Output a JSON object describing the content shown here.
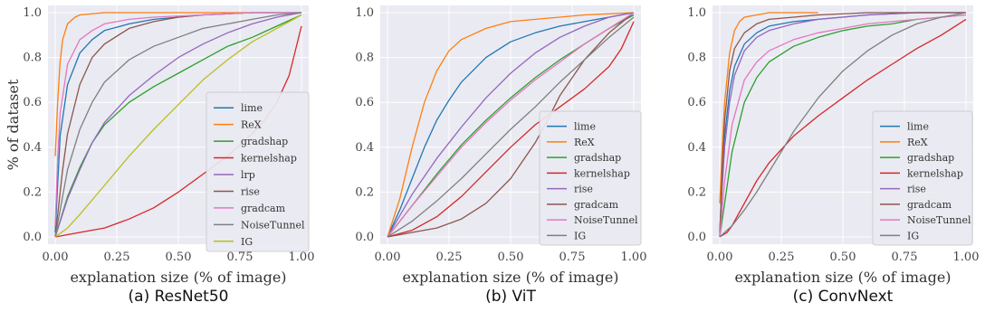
{
  "chart_data": [
    {
      "type": "line",
      "caption": "(a) ResNet50",
      "xlabel": "explanation size (% of image)",
      "ylabel": "% of dataset",
      "xlim": [
        0,
        1
      ],
      "ylim": [
        0,
        1
      ],
      "xticks": [
        "0.00",
        "0.25",
        "0.50",
        "0.75",
        "1.00"
      ],
      "yticks": [
        "0.0",
        "0.2",
        "0.4",
        "0.6",
        "0.8",
        "1.0"
      ],
      "grid": true,
      "legend_position": "lower-right",
      "series": [
        {
          "name": "lime",
          "color": "#1f77b4",
          "x": [
            0,
            0.02,
            0.05,
            0.1,
            0.15,
            0.2,
            0.3,
            0.4,
            0.5,
            0.6,
            0.8,
            1.0
          ],
          "y": [
            0.02,
            0.45,
            0.68,
            0.82,
            0.88,
            0.92,
            0.95,
            0.97,
            0.98,
            0.99,
            1.0,
            1.0
          ]
        },
        {
          "name": "ReX",
          "color": "#ff7f0e",
          "x": [
            0,
            0.01,
            0.02,
            0.03,
            0.05,
            0.08,
            0.1,
            0.15,
            0.2,
            0.3,
            0.5,
            0.8
          ],
          "y": [
            0.36,
            0.6,
            0.78,
            0.88,
            0.95,
            0.98,
            0.99,
            0.995,
            1.0,
            1.0,
            1.0,
            1.0
          ]
        },
        {
          "name": "gradshap",
          "color": "#2ca02c",
          "x": [
            0,
            0.05,
            0.1,
            0.15,
            0.2,
            0.3,
            0.4,
            0.5,
            0.6,
            0.7,
            0.8,
            0.9,
            1.0
          ],
          "y": [
            0.0,
            0.18,
            0.31,
            0.42,
            0.5,
            0.6,
            0.67,
            0.73,
            0.79,
            0.85,
            0.89,
            0.94,
            0.99
          ]
        },
        {
          "name": "kernelshap",
          "color": "#d62728",
          "x": [
            0,
            0.1,
            0.2,
            0.3,
            0.4,
            0.5,
            0.6,
            0.7,
            0.8,
            0.85,
            0.9,
            0.95,
            1.0
          ],
          "y": [
            0.0,
            0.02,
            0.04,
            0.08,
            0.13,
            0.2,
            0.28,
            0.36,
            0.46,
            0.52,
            0.6,
            0.72,
            0.94
          ]
        },
        {
          "name": "lrp",
          "color": "#9467bd",
          "x": [
            0,
            0.05,
            0.1,
            0.15,
            0.2,
            0.3,
            0.4,
            0.5,
            0.6,
            0.7,
            0.8,
            0.9,
            1.0
          ],
          "y": [
            0.0,
            0.17,
            0.3,
            0.42,
            0.51,
            0.63,
            0.72,
            0.8,
            0.86,
            0.91,
            0.95,
            0.98,
            1.0
          ]
        },
        {
          "name": "rise",
          "color": "#8c564b",
          "x": [
            0,
            0.03,
            0.05,
            0.1,
            0.15,
            0.2,
            0.3,
            0.4,
            0.5,
            0.6,
            0.8,
            1.0
          ],
          "y": [
            0.0,
            0.3,
            0.46,
            0.68,
            0.8,
            0.86,
            0.93,
            0.96,
            0.98,
            0.99,
            1.0,
            1.0
          ]
        },
        {
          "name": "gradcam",
          "color": "#e377c2",
          "x": [
            0,
            0.01,
            0.02,
            0.05,
            0.1,
            0.15,
            0.2,
            0.3,
            0.4,
            0.6,
            0.8,
            1.0
          ],
          "y": [
            0.05,
            0.35,
            0.55,
            0.77,
            0.88,
            0.92,
            0.95,
            0.97,
            0.98,
            0.99,
            1.0,
            1.0
          ]
        },
        {
          "name": "NoiseTunnel",
          "color": "#7f7f7f",
          "x": [
            0,
            0.05,
            0.1,
            0.15,
            0.2,
            0.3,
            0.4,
            0.5,
            0.6,
            0.7,
            0.8,
            0.9,
            1.0
          ],
          "y": [
            0.0,
            0.3,
            0.48,
            0.6,
            0.69,
            0.79,
            0.85,
            0.89,
            0.93,
            0.95,
            0.97,
            0.99,
            1.0
          ]
        },
        {
          "name": "IG",
          "color": "#bcbd22",
          "x": [
            0,
            0.05,
            0.1,
            0.2,
            0.3,
            0.4,
            0.5,
            0.6,
            0.7,
            0.8,
            0.9,
            1.0
          ],
          "y": [
            0.0,
            0.04,
            0.1,
            0.23,
            0.36,
            0.48,
            0.59,
            0.7,
            0.79,
            0.87,
            0.93,
            0.99
          ]
        }
      ]
    },
    {
      "type": "line",
      "caption": "(b) ViT",
      "xlabel": "explanation size (% of image)",
      "ylabel": "",
      "xlim": [
        0,
        1
      ],
      "ylim": [
        0,
        1
      ],
      "xticks": [
        "0.00",
        "0.25",
        "0.50",
        "0.75",
        "1.00"
      ],
      "yticks": [
        "0.0",
        "0.2",
        "0.4",
        "0.6",
        "0.8",
        "1.0"
      ],
      "grid": true,
      "legend_position": "lower-right",
      "series": [
        {
          "name": "lime",
          "color": "#1f77b4",
          "x": [
            0,
            0.05,
            0.1,
            0.15,
            0.2,
            0.25,
            0.3,
            0.4,
            0.5,
            0.6,
            0.7,
            0.8,
            0.9,
            1.0
          ],
          "y": [
            0.0,
            0.12,
            0.26,
            0.4,
            0.52,
            0.61,
            0.69,
            0.8,
            0.87,
            0.91,
            0.94,
            0.96,
            0.98,
            1.0
          ]
        },
        {
          "name": "ReX",
          "color": "#ff7f0e",
          "x": [
            0,
            0.05,
            0.1,
            0.15,
            0.2,
            0.25,
            0.3,
            0.4,
            0.5,
            0.6,
            0.7,
            0.8,
            0.9,
            1.0
          ],
          "y": [
            0.0,
            0.17,
            0.4,
            0.6,
            0.74,
            0.83,
            0.88,
            0.93,
            0.96,
            0.97,
            0.98,
            0.99,
            0.995,
            1.0
          ]
        },
        {
          "name": "gradshap",
          "color": "#2ca02c",
          "x": [
            0,
            0.1,
            0.2,
            0.3,
            0.4,
            0.5,
            0.6,
            0.7,
            0.8,
            0.9,
            1.0
          ],
          "y": [
            0.0,
            0.14,
            0.28,
            0.41,
            0.52,
            0.62,
            0.71,
            0.79,
            0.86,
            0.93,
            0.99
          ]
        },
        {
          "name": "kernelshap",
          "color": "#d62728",
          "x": [
            0,
            0.1,
            0.2,
            0.3,
            0.4,
            0.5,
            0.6,
            0.7,
            0.8,
            0.9,
            0.95,
            1.0
          ],
          "y": [
            0.0,
            0.03,
            0.09,
            0.18,
            0.29,
            0.4,
            0.5,
            0.58,
            0.66,
            0.76,
            0.84,
            0.96
          ]
        },
        {
          "name": "rise",
          "color": "#9467bd",
          "x": [
            0,
            0.1,
            0.2,
            0.3,
            0.4,
            0.5,
            0.6,
            0.7,
            0.8,
            0.9,
            1.0
          ],
          "y": [
            0.0,
            0.19,
            0.35,
            0.49,
            0.62,
            0.73,
            0.82,
            0.89,
            0.94,
            0.98,
            1.0
          ]
        },
        {
          "name": "gradcam",
          "color": "#8c564b",
          "x": [
            0,
            0.1,
            0.2,
            0.3,
            0.4,
            0.5,
            0.6,
            0.65,
            0.7,
            0.8,
            0.9,
            1.0
          ],
          "y": [
            0.0,
            0.02,
            0.04,
            0.08,
            0.15,
            0.26,
            0.42,
            0.52,
            0.63,
            0.79,
            0.91,
            1.0
          ]
        },
        {
          "name": "NoiseTunnel",
          "color": "#e377c2",
          "x": [
            0,
            0.1,
            0.2,
            0.3,
            0.4,
            0.5,
            0.6,
            0.7,
            0.8,
            0.9,
            1.0
          ],
          "y": [
            0.0,
            0.14,
            0.27,
            0.4,
            0.51,
            0.61,
            0.7,
            0.78,
            0.86,
            0.93,
            1.0
          ]
        },
        {
          "name": "IG",
          "color": "#7f7f7f",
          "x": [
            0,
            0.1,
            0.2,
            0.3,
            0.4,
            0.5,
            0.6,
            0.7,
            0.8,
            0.9,
            1.0
          ],
          "y": [
            0.0,
            0.07,
            0.16,
            0.26,
            0.37,
            0.48,
            0.58,
            0.69,
            0.79,
            0.89,
            0.98
          ]
        }
      ]
    },
    {
      "type": "line",
      "caption": "(c) ConvNext",
      "xlabel": "explanation size (% of image)",
      "ylabel": "",
      "xlim": [
        0,
        1
      ],
      "ylim": [
        0,
        1
      ],
      "xticks": [
        "0.00",
        "0.25",
        "0.50",
        "0.75",
        "1.00"
      ],
      "yticks": [
        "0.0",
        "0.2",
        "0.4",
        "0.6",
        "0.8",
        "1.0"
      ],
      "grid": true,
      "legend_position": "lower-right",
      "series": [
        {
          "name": "lime",
          "color": "#1f77b4",
          "x": [
            0,
            0.01,
            0.02,
            0.04,
            0.06,
            0.1,
            0.15,
            0.2,
            0.3,
            0.4,
            0.6,
            0.8,
            1.0
          ],
          "y": [
            0.02,
            0.28,
            0.45,
            0.65,
            0.76,
            0.86,
            0.91,
            0.94,
            0.96,
            0.97,
            0.99,
            1.0,
            1.0
          ]
        },
        {
          "name": "ReX",
          "color": "#ff7f0e",
          "x": [
            0,
            0.01,
            0.02,
            0.04,
            0.06,
            0.08,
            0.1,
            0.15,
            0.2,
            0.3,
            0.4
          ],
          "y": [
            0.15,
            0.4,
            0.6,
            0.82,
            0.92,
            0.96,
            0.98,
            0.99,
            1.0,
            1.0,
            1.0
          ]
        },
        {
          "name": "gradshap",
          "color": "#2ca02c",
          "x": [
            0,
            0.02,
            0.05,
            0.1,
            0.15,
            0.2,
            0.3,
            0.4,
            0.5,
            0.6,
            0.7,
            0.8,
            0.9,
            1.0
          ],
          "y": [
            0.0,
            0.15,
            0.38,
            0.6,
            0.71,
            0.78,
            0.85,
            0.89,
            0.92,
            0.94,
            0.95,
            0.97,
            0.98,
            0.99
          ]
        },
        {
          "name": "kernelshap",
          "color": "#d62728",
          "x": [
            0,
            0.03,
            0.05,
            0.1,
            0.15,
            0.2,
            0.3,
            0.4,
            0.5,
            0.6,
            0.7,
            0.8,
            0.9,
            1.0
          ],
          "y": [
            0.0,
            0.02,
            0.05,
            0.15,
            0.25,
            0.33,
            0.45,
            0.54,
            0.62,
            0.7,
            0.77,
            0.84,
            0.9,
            0.97
          ]
        },
        {
          "name": "rise",
          "color": "#9467bd",
          "x": [
            0,
            0.01,
            0.02,
            0.04,
            0.06,
            0.1,
            0.15,
            0.2,
            0.3,
            0.4,
            0.6,
            0.8,
            1.0
          ],
          "y": [
            0.0,
            0.22,
            0.4,
            0.6,
            0.72,
            0.83,
            0.89,
            0.92,
            0.95,
            0.97,
            0.99,
            1.0,
            1.0
          ]
        },
        {
          "name": "gradcam",
          "color": "#8c564b",
          "x": [
            0,
            0.01,
            0.02,
            0.04,
            0.06,
            0.1,
            0.15,
            0.2,
            0.3,
            0.4,
            0.6,
            1.0
          ],
          "y": [
            0.0,
            0.3,
            0.52,
            0.74,
            0.84,
            0.91,
            0.95,
            0.97,
            0.98,
            0.99,
            1.0,
            1.0
          ]
        },
        {
          "name": "NoiseTunnel",
          "color": "#e377c2",
          "x": [
            0,
            0.02,
            0.05,
            0.1,
            0.15,
            0.2,
            0.3,
            0.4,
            0.5,
            0.6,
            0.7,
            0.8,
            0.9,
            1.0
          ],
          "y": [
            0.0,
            0.25,
            0.5,
            0.7,
            0.78,
            0.83,
            0.88,
            0.91,
            0.93,
            0.95,
            0.96,
            0.97,
            0.98,
            0.99
          ]
        },
        {
          "name": "IG",
          "color": "#7f7f7f",
          "x": [
            0,
            0.05,
            0.1,
            0.15,
            0.2,
            0.25,
            0.3,
            0.4,
            0.5,
            0.6,
            0.7,
            0.8,
            0.9,
            1.0
          ],
          "y": [
            0.0,
            0.05,
            0.12,
            0.2,
            0.29,
            0.38,
            0.47,
            0.62,
            0.74,
            0.83,
            0.9,
            0.95,
            0.98,
            1.0
          ]
        }
      ]
    }
  ]
}
